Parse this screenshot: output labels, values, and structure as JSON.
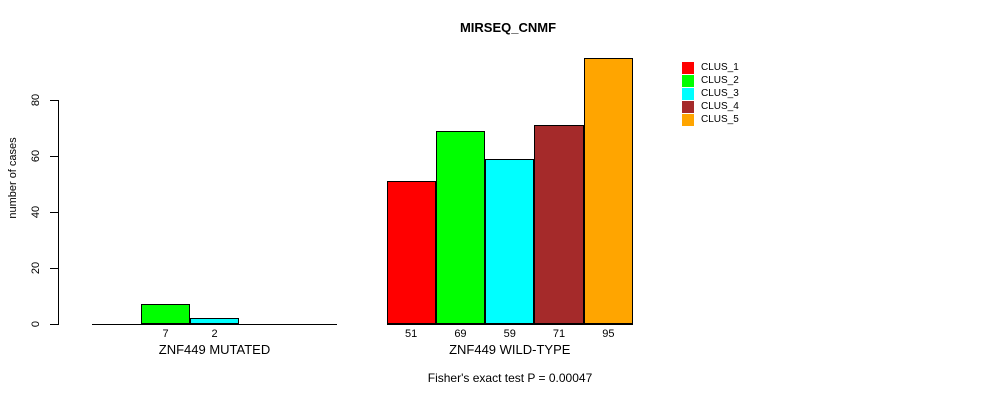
{
  "chart_data": {
    "type": "bar",
    "title": "MIRSEQ_CNMF",
    "ylabel": "number of cases",
    "ylim": [
      0,
      95
    ],
    "yticks": [
      0,
      20,
      40,
      60,
      80
    ],
    "grid": false,
    "legend_position": "right",
    "categories": [
      "CLUS_1",
      "CLUS_2",
      "CLUS_3",
      "CLUS_4",
      "CLUS_5"
    ],
    "colors": [
      "#FF0000",
      "#00FF00",
      "#00FFFF",
      "#A52A2A",
      "#FFA500"
    ],
    "groups": [
      {
        "label": "ZNF449 MUTATED",
        "values": [
          0,
          7,
          2,
          0,
          0
        ],
        "bar_labels": [
          "",
          "7",
          "2",
          "",
          ""
        ]
      },
      {
        "label": "ZNF449 WILD-TYPE",
        "values": [
          51,
          69,
          59,
          71,
          95
        ],
        "bar_labels": [
          "51",
          "69",
          "59",
          "71",
          "95"
        ]
      }
    ],
    "annotation": "Fisher's exact test P = 0.00047"
  }
}
